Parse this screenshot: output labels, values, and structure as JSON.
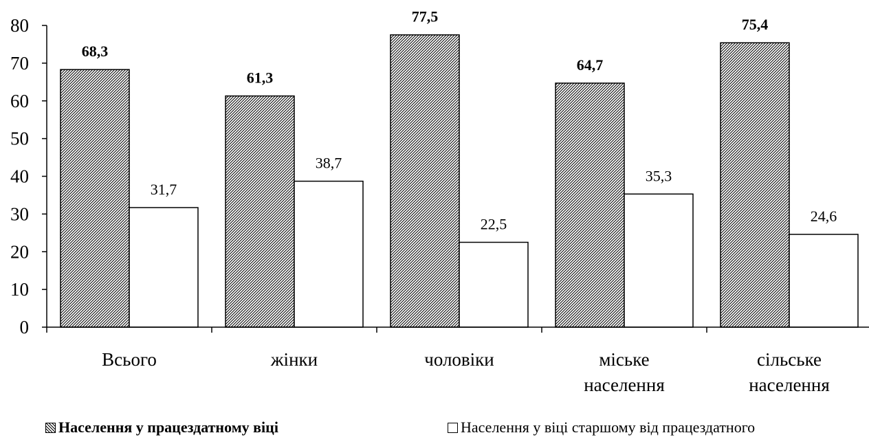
{
  "chart_data": {
    "type": "bar",
    "categories": [
      [
        "Всього"
      ],
      [
        "жінки"
      ],
      [
        "чоловіки"
      ],
      [
        "міське",
        "населення"
      ],
      [
        "сільське",
        "населення"
      ]
    ],
    "series": [
      {
        "name": "Населення у працездатному віці",
        "values": [
          68.3,
          61.3,
          77.5,
          64.7,
          75.4
        ],
        "labels": [
          "68,3",
          "61,3",
          "77,5",
          "64,7",
          "75,4"
        ],
        "fill": "hatched",
        "label_bold": true
      },
      {
        "name": "Населення у віці старшому від працездатного",
        "values": [
          31.7,
          38.7,
          22.5,
          35.3,
          24.6
        ],
        "labels": [
          "31,7",
          "38,7",
          "22,5",
          "35,3",
          "24,6"
        ],
        "fill": "#ffffff",
        "label_bold": false
      }
    ],
    "ylim": [
      0,
      80
    ],
    "yticks": [
      "0",
      "10",
      "20",
      "30",
      "40",
      "50",
      "60",
      "70",
      "80"
    ],
    "grid": false,
    "legend_position": "bottom"
  }
}
